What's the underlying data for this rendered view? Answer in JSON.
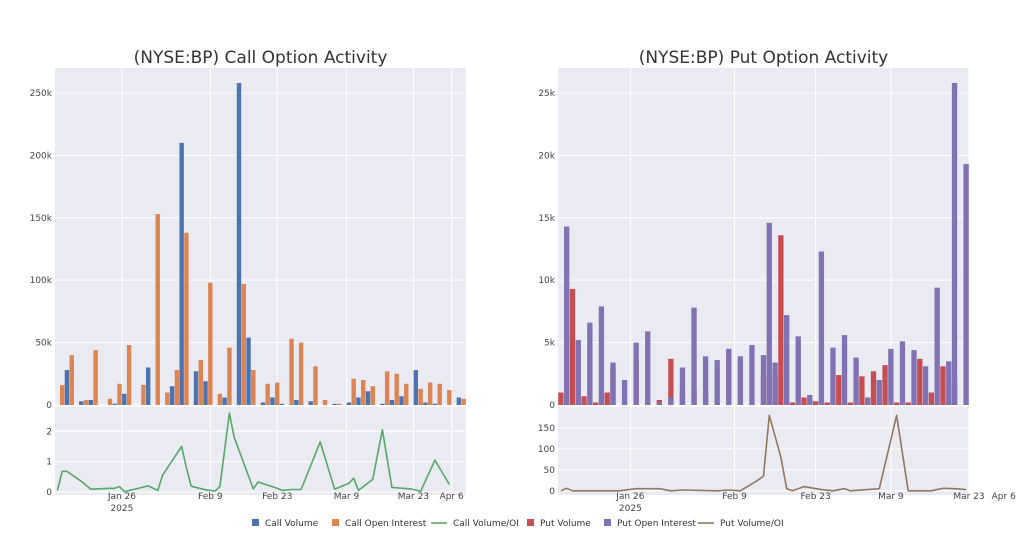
{
  "chart_data": [
    {
      "type": "bar",
      "title": "(NYSE:BP) Call Option Activity",
      "y_ticks": [
        "0",
        "50k",
        "100k",
        "150k",
        "200k",
        "250k"
      ],
      "y_tick_values": [
        0,
        50000,
        100000,
        150000,
        200000,
        250000
      ],
      "ylim": [
        0,
        270000
      ],
      "ratio_ticks": [
        "0",
        "1",
        "2"
      ],
      "ratio_tick_values": [
        0,
        1,
        2
      ],
      "ratio_ylim": [
        -0.1,
        2.8
      ],
      "series": [
        {
          "name": "Call Volume",
          "color": "#4c72b0",
          "points": [
            [
              2,
              28000
            ],
            [
              5,
              3000
            ],
            [
              7,
              4000
            ],
            [
              12,
              1000
            ],
            [
              14,
              9000
            ],
            [
              19,
              30000
            ],
            [
              24,
              15000
            ],
            [
              26,
              210000
            ],
            [
              29,
              27000
            ],
            [
              31,
              19000
            ],
            [
              35,
              6000
            ],
            [
              38,
              258000
            ],
            [
              40,
              54000
            ],
            [
              43,
              2000
            ],
            [
              45,
              6000
            ],
            [
              47,
              1000
            ],
            [
              50,
              4000
            ],
            [
              53,
              3000
            ],
            [
              58,
              1000
            ],
            [
              61,
              2000
            ],
            [
              63,
              6000
            ],
            [
              65,
              11000
            ],
            [
              68,
              1000
            ],
            [
              70,
              4000
            ],
            [
              72,
              7000
            ],
            [
              75,
              28000
            ],
            [
              77,
              2000
            ],
            [
              79,
              1000
            ],
            [
              84,
              6000
            ]
          ]
        },
        {
          "name": "Call Open Interest",
          "color": "#dd8452",
          "points": [
            [
              1,
              16000
            ],
            [
              3,
              40000
            ],
            [
              6,
              4000
            ],
            [
              8,
              44000
            ],
            [
              11,
              5000
            ],
            [
              13,
              17000
            ],
            [
              15,
              48000
            ],
            [
              18,
              16000
            ],
            [
              21,
              153000
            ],
            [
              23,
              10000
            ],
            [
              25,
              28000
            ],
            [
              27,
              138000
            ],
            [
              30,
              36000
            ],
            [
              32,
              98000
            ],
            [
              34,
              9000
            ],
            [
              36,
              46000
            ],
            [
              39,
              97000
            ],
            [
              41,
              28000
            ],
            [
              44,
              17000
            ],
            [
              46,
              18000
            ],
            [
              49,
              53000
            ],
            [
              51,
              50000
            ],
            [
              54,
              31000
            ],
            [
              56,
              4000
            ],
            [
              59,
              1000
            ],
            [
              62,
              21000
            ],
            [
              64,
              20000
            ],
            [
              66,
              15000
            ],
            [
              69,
              27000
            ],
            [
              71,
              25000
            ],
            [
              73,
              17000
            ],
            [
              76,
              13000
            ],
            [
              78,
              18000
            ],
            [
              80,
              17000
            ],
            [
              82,
              12000
            ],
            [
              85,
              5000
            ]
          ]
        }
      ],
      "ratio_series": {
        "name": "Call Volume/OI",
        "color": "#55a868",
        "points": [
          [
            0,
            0.05
          ],
          [
            1,
            0.68
          ],
          [
            2,
            0.68
          ],
          [
            5,
            0.35
          ],
          [
            7,
            0.09
          ],
          [
            11,
            0.12
          ],
          [
            12,
            0.12
          ],
          [
            13,
            0.18
          ],
          [
            14,
            0.01
          ],
          [
            19,
            0.2
          ],
          [
            21,
            0.05
          ],
          [
            22,
            0.55
          ],
          [
            26,
            1.5
          ],
          [
            27,
            0.8
          ],
          [
            28,
            0.19
          ],
          [
            31,
            0.07
          ],
          [
            33,
            0.03
          ],
          [
            34,
            0.18
          ],
          [
            36,
            2.6
          ],
          [
            37,
            1.8
          ],
          [
            41,
            0.1
          ],
          [
            42,
            0.33
          ],
          [
            46,
            0.12
          ],
          [
            47,
            0.05
          ],
          [
            49,
            0.08
          ],
          [
            51,
            0.08
          ],
          [
            55,
            1.65
          ],
          [
            58,
            0.09
          ],
          [
            61,
            0.29
          ],
          [
            62,
            0.45
          ],
          [
            63,
            0.05
          ],
          [
            66,
            0.42
          ],
          [
            68,
            2.05
          ],
          [
            70,
            0.15
          ],
          [
            74,
            0.1
          ],
          [
            76,
            0.02
          ],
          [
            79,
            1.05
          ],
          [
            82,
            0.25
          ]
        ]
      }
    },
    {
      "type": "bar",
      "title": "(NYSE:BP) Put Option Activity",
      "y_ticks": [
        "0",
        "5k",
        "10k",
        "15k",
        "20k",
        "25k"
      ],
      "y_tick_values": [
        0,
        5000,
        10000,
        15000,
        20000,
        25000
      ],
      "ylim": [
        0,
        27000
      ],
      "ratio_ticks": [
        "0",
        "50",
        "100",
        "150"
      ],
      "ratio_tick_values": [
        0,
        50,
        100,
        150
      ],
      "ratio_ylim": [
        -10,
        200
      ],
      "series": [
        {
          "name": "Put Volume",
          "color": "#c44e52",
          "points": [
            [
              0,
              1000
            ],
            [
              2,
              9300
            ],
            [
              4,
              700
            ],
            [
              6,
              200
            ],
            [
              8,
              1000
            ],
            [
              9,
              3000
            ],
            [
              11,
              100
            ],
            [
              13,
              3700
            ],
            [
              15,
              200
            ],
            [
              17,
              400
            ],
            [
              19,
              3700
            ],
            [
              21,
              1200
            ],
            [
              23,
              1300
            ],
            [
              25,
              900
            ],
            [
              27,
              200
            ],
            [
              29,
              3800
            ],
            [
              31,
              300
            ],
            [
              33,
              100
            ],
            [
              35,
              2400
            ],
            [
              37,
              2300
            ],
            [
              38,
              13600
            ],
            [
              40,
              200
            ],
            [
              42,
              600
            ],
            [
              44,
              300
            ],
            [
              46,
              200
            ],
            [
              48,
              2400
            ],
            [
              50,
              200
            ],
            [
              52,
              2300
            ],
            [
              54,
              2700
            ],
            [
              56,
              3200
            ],
            [
              58,
              200
            ],
            [
              60,
              200
            ],
            [
              62,
              3700
            ],
            [
              64,
              1000
            ],
            [
              66,
              3100
            ],
            [
              68,
              1900
            ]
          ]
        },
        {
          "name": "Put Open Interest",
          "color": "#8172b3",
          "points": [
            [
              1,
              14300
            ],
            [
              3,
              5200
            ],
            [
              5,
              6600
            ],
            [
              7,
              7900
            ],
            [
              9,
              3400
            ],
            [
              11,
              2000
            ],
            [
              13,
              5000
            ],
            [
              15,
              5900
            ],
            [
              17,
              200
            ],
            [
              19,
              600
            ],
            [
              21,
              3000
            ],
            [
              23,
              7800
            ],
            [
              25,
              3900
            ],
            [
              27,
              3600
            ],
            [
              29,
              4500
            ],
            [
              31,
              3900
            ],
            [
              33,
              4800
            ],
            [
              35,
              4000
            ],
            [
              36,
              14600
            ],
            [
              37,
              3400
            ],
            [
              39,
              7200
            ],
            [
              41,
              5500
            ],
            [
              43,
              800
            ],
            [
              45,
              12300
            ],
            [
              47,
              4600
            ],
            [
              49,
              5600
            ],
            [
              51,
              3800
            ],
            [
              53,
              600
            ],
            [
              55,
              2000
            ],
            [
              57,
              4500
            ],
            [
              59,
              5100
            ],
            [
              61,
              4400
            ],
            [
              63,
              3100
            ],
            [
              65,
              9400
            ],
            [
              67,
              3500
            ],
            [
              68,
              25800
            ],
            [
              70,
              19300
            ]
          ]
        },
        {
          "name": "Call Volume",
          "color": "#4c72b0",
          "points": []
        }
      ],
      "ratio_series": {
        "name": "Put Volume/OI",
        "color": "#937860",
        "points": [
          [
            0,
            0
          ],
          [
            1,
            6
          ],
          [
            2,
            0
          ],
          [
            8,
            0
          ],
          [
            10,
            0
          ],
          [
            13,
            5
          ],
          [
            17,
            5
          ],
          [
            19,
            0
          ],
          [
            21,
            2
          ],
          [
            27,
            0
          ],
          [
            29,
            2
          ],
          [
            31,
            0
          ],
          [
            34,
            25
          ],
          [
            35,
            35
          ],
          [
            36,
            180
          ],
          [
            38,
            80
          ],
          [
            39,
            5
          ],
          [
            40,
            0
          ],
          [
            42,
            10
          ],
          [
            45,
            3
          ],
          [
            47,
            0
          ],
          [
            49,
            5
          ],
          [
            50,
            0
          ],
          [
            53,
            3
          ],
          [
            55,
            5
          ],
          [
            58,
            180
          ],
          [
            60,
            0
          ],
          [
            62,
            0
          ],
          [
            64,
            0
          ],
          [
            66,
            6
          ],
          [
            68,
            5
          ],
          [
            70,
            3
          ]
        ]
      }
    }
  ],
  "x_axis_labels": [
    {
      "label": "Jan 26",
      "year": "2025"
    },
    {
      "label": "Feb 9",
      "year": ""
    },
    {
      "label": "Feb 23",
      "year": ""
    },
    {
      "label": "Mar 9",
      "year": ""
    },
    {
      "label": "Mar 23",
      "year": ""
    },
    {
      "label": "Apr 6",
      "year": ""
    }
  ],
  "legend": [
    {
      "name": "Call Volume",
      "kind": "bar",
      "color": "#4c72b0"
    },
    {
      "name": "Call Open Interest",
      "kind": "bar",
      "color": "#dd8452"
    },
    {
      "name": "Call Volume/OI",
      "kind": "line",
      "color": "#55a868"
    },
    {
      "name": "Put Volume",
      "kind": "bar",
      "color": "#c44e52"
    },
    {
      "name": "Put Open Interest",
      "kind": "bar",
      "color": "#8172b3"
    },
    {
      "name": "Put Volume/OI",
      "kind": "line",
      "color": "#937860"
    }
  ]
}
